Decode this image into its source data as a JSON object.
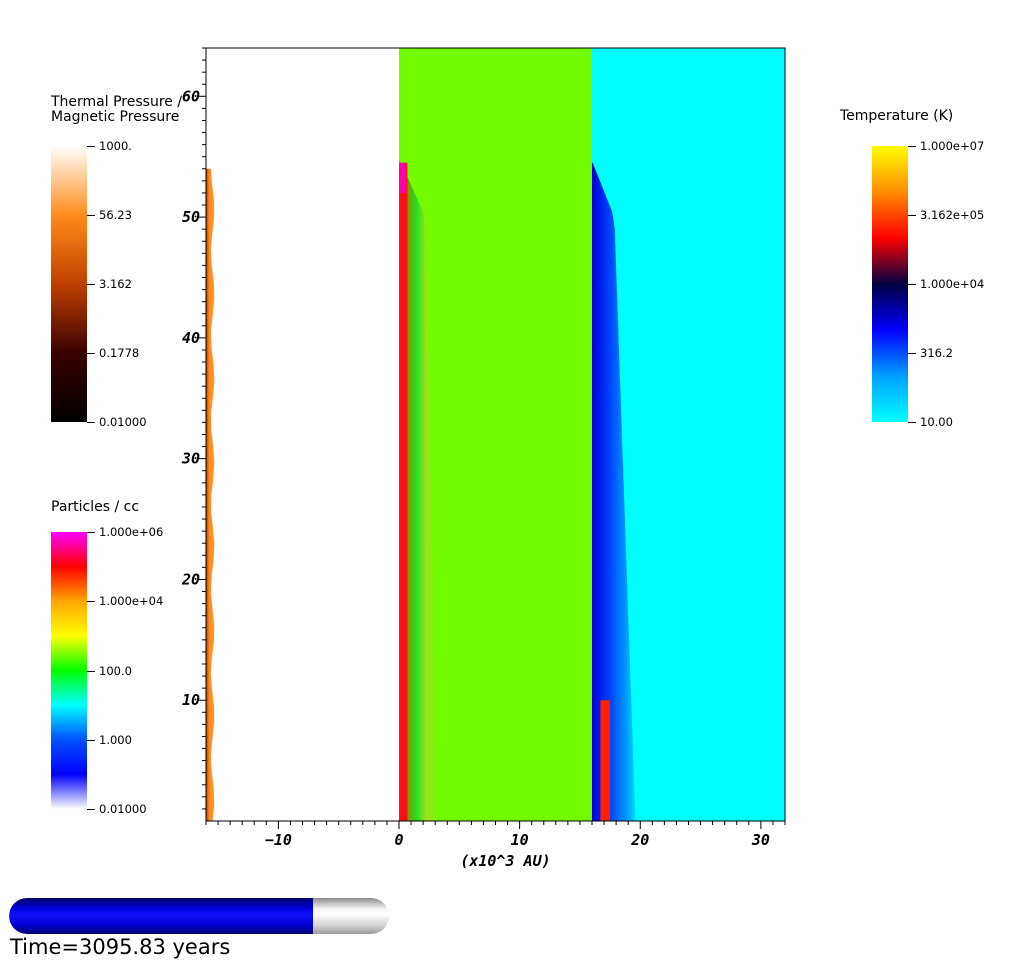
{
  "chart_data": {
    "type": "heatmap",
    "xlabel": "(x10^3 AU)",
    "ylabel": "",
    "xlim": [
      -16,
      32
    ],
    "ylim": [
      0,
      64
    ],
    "x_ticks": [
      -10,
      0,
      10,
      20,
      30
    ],
    "y_ticks": [
      10,
      20,
      30,
      40,
      50,
      60
    ],
    "x_tick_labels": [
      "−10",
      "0",
      "10",
      "20",
      "30"
    ],
    "y_tick_labels": [
      "10",
      "20",
      "30",
      "40",
      "50",
      "60"
    ],
    "panels": [
      {
        "x_range": [
          -16,
          0
        ],
        "quantity": "Thermal Pressure / Magnetic Pressure",
        "background": "#ffffff",
        "front_top_y": 54
      },
      {
        "x_range": [
          0,
          16
        ],
        "quantity": "Particles / cc",
        "background": "#73fb00",
        "front_top_y": 54.5
      },
      {
        "x_range": [
          16,
          32
        ],
        "quantity": "Temperature (K)",
        "background": "#00ffff",
        "front_top_y": 54.5
      }
    ]
  },
  "legends": {
    "pressure": {
      "title": "Thermal Pressure /\nMagnetic Pressure",
      "ticks": [
        "1000.",
        "56.23",
        "3.162",
        "0.1778",
        "0.01000"
      ],
      "colors": [
        "#ffffff",
        "#ff8c1a",
        "#c04000",
        "#3a0000",
        "#000000"
      ]
    },
    "density": {
      "title": "Particles / cc",
      "ticks": [
        "1.000e+06",
        "1.000e+04",
        "100.0",
        "1.000",
        "0.01000"
      ],
      "colors": [
        "#ff00ff",
        "#ff0000",
        "#ffa500",
        "#ffff00",
        "#00ff00",
        "#00ffff",
        "#0050ff",
        "#0000ff",
        "#ffffff"
      ]
    },
    "temperature": {
      "title": "Temperature (K)",
      "ticks": [
        "1.000e+07",
        "3.162e+05",
        "1.000e+04",
        "316.2",
        "10.00"
      ],
      "colors": [
        "#ffff00",
        "#ff8c00",
        "#ff0000",
        "#000040",
        "#0000ff",
        "#00a0ff",
        "#00ffff"
      ]
    }
  },
  "progress": {
    "fraction": 0.8,
    "label": "Time=3095.83 years"
  }
}
